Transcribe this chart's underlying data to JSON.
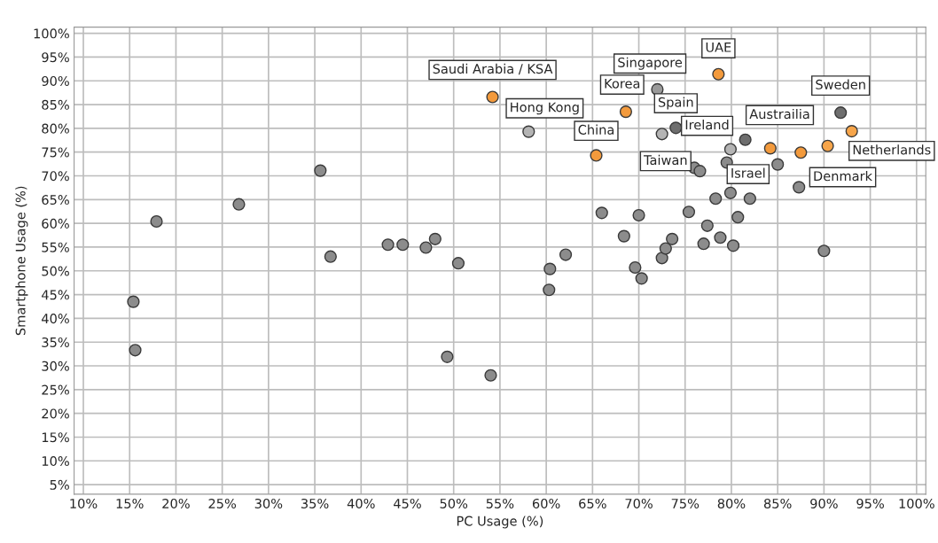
{
  "chart_data": {
    "type": "scatter",
    "xlabel": "PC Usage (%)",
    "ylabel": "Smartphone Usage (%)",
    "xlim": [
      9,
      101
    ],
    "ylim": [
      3,
      101.3
    ],
    "xticks": [
      {
        "value": 10,
        "label": "10%"
      },
      {
        "value": 15,
        "label": "15%"
      },
      {
        "value": 20,
        "label": "20%"
      },
      {
        "value": 25,
        "label": "25%"
      },
      {
        "value": 30,
        "label": "30%"
      },
      {
        "value": 35,
        "label": "35%"
      },
      {
        "value": 40,
        "label": "40%"
      },
      {
        "value": 45,
        "label": "45%"
      },
      {
        "value": 50,
        "label": "50%"
      },
      {
        "value": 55,
        "label": "55%"
      },
      {
        "value": 60,
        "label": "60%"
      },
      {
        "value": 65,
        "label": "65%"
      },
      {
        "value": 70,
        "label": "70%"
      },
      {
        "value": 75,
        "label": "75%"
      },
      {
        "value": 80,
        "label": "80%"
      },
      {
        "value": 85,
        "label": "85%"
      },
      {
        "value": 90,
        "label": "90%"
      },
      {
        "value": 95,
        "label": "95%"
      },
      {
        "value": 100,
        "label": "100%"
      }
    ],
    "yticks": [
      {
        "value": 5,
        "label": "5%"
      },
      {
        "value": 10,
        "label": "10%"
      },
      {
        "value": 15,
        "label": "15%"
      },
      {
        "value": 20,
        "label": "20%"
      },
      {
        "value": 25,
        "label": "25%"
      },
      {
        "value": 30,
        "label": "30%"
      },
      {
        "value": 35,
        "label": "35%"
      },
      {
        "value": 40,
        "label": "40%"
      },
      {
        "value": 45,
        "label": "45%"
      },
      {
        "value": 50,
        "label": "50%"
      },
      {
        "value": 55,
        "label": "55%"
      },
      {
        "value": 60,
        "label": "60%"
      },
      {
        "value": 65,
        "label": "65%"
      },
      {
        "value": 70,
        "label": "70%"
      },
      {
        "value": 75,
        "label": "75%"
      },
      {
        "value": 80,
        "label": "80%"
      },
      {
        "value": 85,
        "label": "85%"
      },
      {
        "value": 90,
        "label": "90%"
      },
      {
        "value": 95,
        "label": "95%"
      },
      {
        "value": 100,
        "label": "100%"
      }
    ],
    "grid": true,
    "marker": "circle",
    "series": [
      {
        "color": "#8c8c8c",
        "x": [
          15.4,
          15.6,
          17.9,
          26.8,
          35.6,
          36.7,
          42.9,
          44.5,
          47.0,
          48.0,
          50.5,
          49.3,
          54.0,
          60.4,
          60.3,
          62.1,
          66.0,
          70.0,
          68.4,
          69.6,
          70.3,
          72.5,
          72.9,
          73.6,
          75.4,
          76.0,
          76.6,
          77.4,
          77.0,
          78.3,
          78.8,
          79.9,
          80.2,
          80.7,
          82.0,
          79.5,
          85.0,
          87.3,
          90.0
        ],
        "values": [
          43.5,
          33.3,
          60.4,
          64.0,
          71.1,
          53.0,
          55.5,
          55.5,
          54.9,
          56.7,
          51.6,
          31.9,
          28.0,
          50.4,
          46.0,
          53.4,
          62.2,
          61.7,
          57.3,
          50.7,
          48.4,
          52.7,
          54.7,
          56.7,
          62.4,
          71.7,
          71.0,
          59.5,
          55.7,
          65.2,
          57.0,
          66.4,
          55.3,
          61.3,
          65.2,
          72.8,
          72.4,
          67.6,
          54.2
        ]
      },
      {
        "x": [
          54.2,
          58.1,
          65.4,
          68.6,
          72.0,
          78.6,
          74.0,
          72.5,
          79.9,
          81.5,
          84.2,
          87.5,
          91.8,
          90.4,
          93.0
        ],
        "values": [
          86.6,
          79.3,
          74.3,
          83.5,
          88.2,
          91.4,
          80.1,
          78.8,
          75.6,
          77.6,
          75.8,
          74.9,
          83.3,
          76.3,
          79.4
        ],
        "colors": [
          "#f39a3c",
          "#b4b4b4",
          "#f39a3c",
          "#f39a3c",
          "#9a9a9a",
          "#f39a3c",
          "#6e6e6e",
          "#b4b4b4",
          "#b4b4b4",
          "#6e6e6e",
          "#f39a3c",
          "#f39a3c",
          "#6e6e6e",
          "#f7a54a",
          "#f7a54a"
        ]
      }
    ],
    "annotations": [
      {
        "text": "Saudi Arabia / KSA",
        "x": 54.2,
        "y": 86.6
      },
      {
        "text": "Hong Kong",
        "x": 58.1,
        "y": 79.3
      },
      {
        "text": "China",
        "x": 65.4,
        "y": 74.3
      },
      {
        "text": "Korea",
        "x": 68.6,
        "y": 83.5
      },
      {
        "text": "Singapore",
        "x": 72.0,
        "y": 88.2
      },
      {
        "text": "UAE",
        "x": 78.6,
        "y": 91.4
      },
      {
        "text": "Spain",
        "x": 74.0,
        "y": 80.1
      },
      {
        "text": "Taiwan",
        "x": 72.5,
        "y": 78.8
      },
      {
        "text": "Ireland",
        "x": 79.9,
        "y": 75.6
      },
      {
        "text": "Austrailia",
        "x": 81.5,
        "y": 77.6
      },
      {
        "text": "Israel",
        "x": 84.2,
        "y": 75.8
      },
      {
        "text": "Denmark",
        "x": 87.5,
        "y": 74.9
      },
      {
        "text": "Sweden",
        "x": 91.8,
        "y": 83.3
      },
      {
        "text": "Netherlands",
        "x": 90.4,
        "y": 76.3
      }
    ]
  }
}
